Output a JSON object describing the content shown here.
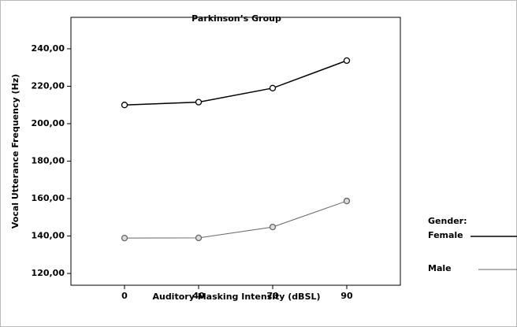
{
  "chart_data": {
    "type": "line",
    "title": "Parkinson’s Group",
    "x_label": "Auditory Masking Intensity (dBSL)",
    "y_label": "Vocal Utterance Frequency (Hz)",
    "legend_title": "Gender:",
    "categories": [
      "0",
      "40",
      "70",
      "90"
    ],
    "series": [
      {
        "name": "Female",
        "color": "#000000",
        "values": [
          210,
          211.5,
          219,
          233.7
        ]
      },
      {
        "name": "Male",
        "color": "#666666",
        "values": [
          138.9,
          139,
          144.8,
          158.7
        ]
      }
    ],
    "ylim": [
      113.7,
      256.8
    ],
    "yticks": [
      {
        "value": 120,
        "label": "120,00"
      },
      {
        "value": 140,
        "label": "140,00"
      },
      {
        "value": 160,
        "label": "160,00"
      },
      {
        "value": 180,
        "label": "180,00"
      },
      {
        "value": 200,
        "label": "200,00"
      },
      {
        "value": 220,
        "label": "220,00"
      },
      {
        "value": 240,
        "label": "240,00"
      }
    ],
    "legend_position": "right"
  }
}
